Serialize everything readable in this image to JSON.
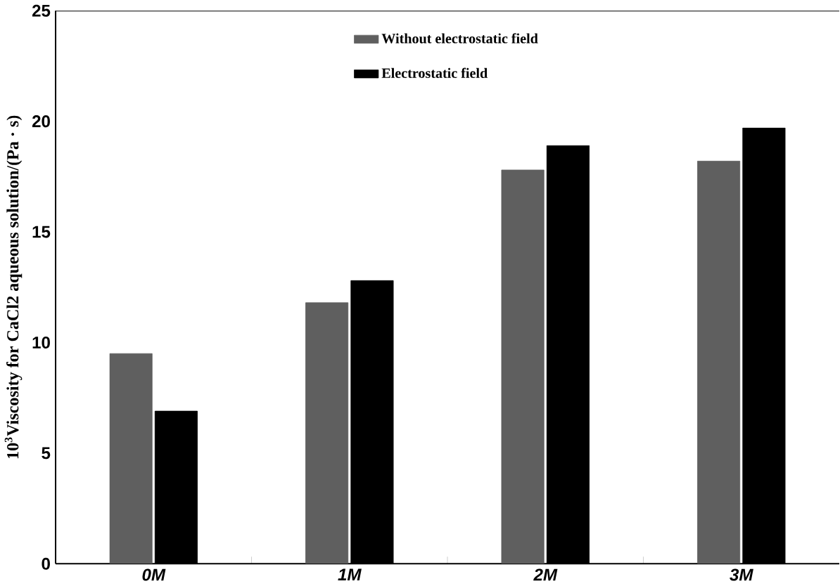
{
  "chart_data": {
    "type": "bar",
    "ylabel": "10$^{3}$Viscosity for CaCl2 aqueous solution/(Pa · s)",
    "categories": [
      "0M",
      "1M",
      "2M",
      "3M"
    ],
    "series": [
      {
        "name": "Without electrostatic field",
        "color": "#5f5f5f",
        "values": [
          9.5,
          11.8,
          17.8,
          18.2
        ]
      },
      {
        "name": "Electrostatic field",
        "color": "#000000",
        "values": [
          6.9,
          12.8,
          18.9,
          19.7
        ]
      }
    ],
    "ylim": [
      0,
      25
    ],
    "yticks": [
      0,
      5,
      10,
      15,
      20,
      25
    ],
    "grid": false,
    "legend": "top"
  }
}
